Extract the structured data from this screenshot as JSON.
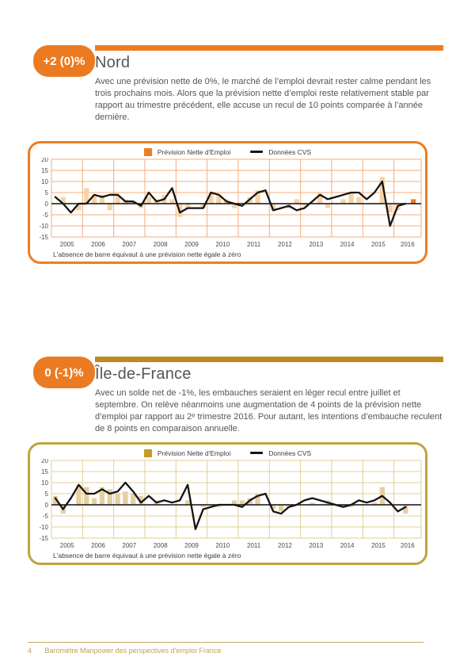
{
  "sections": [
    {
      "badge": "+2 (0)%",
      "badge_color": "#EB7B23",
      "accent_color": "#EE7D22",
      "title": "Nord",
      "body": "Avec une prévision nette de 0%, le marché de l’emploi devrait rester calme pendant les trois prochains mois. Alors que la prévision nette d’emploi reste relativement stable par rapport au trimestre précédent, elle accuse un recul de 10 points comparée à l’année dernière."
    },
    {
      "badge": "0 (-1)%",
      "badge_color": "#EB7B23",
      "accent_color": "#BE8C1E",
      "title": "Île-de-France",
      "body": "Avec un solde net de -1%, les embauches seraient en léger recul entre juillet et septembre. On relève néanmoins une augmentation de 4 points de la prévision nette d’emploi par rapport au 2ᵉ trimestre 2016. Pour autant, les intentions d’embauche reculent de 8 points en comparaison annuelle."
    }
  ],
  "chart_data": [
    {
      "type": "bar",
      "region": "Nord",
      "legend": [
        "Prévision Nette d'Emploi",
        "Données CVS"
      ],
      "note": "L'absence de barre équivaut à une prévision nette égale à zéro",
      "x_years": [
        "2005",
        "2006",
        "2007",
        "2008",
        "2009",
        "2010",
        "2011",
        "2012",
        "2013",
        "2014",
        "2015",
        "2016"
      ],
      "x_unit": "quarter",
      "ylim": [
        -15,
        20
      ],
      "yticks": [
        20,
        15,
        10,
        5,
        0,
        -5,
        -10,
        -15
      ],
      "highlight_last_bar": true,
      "series": [
        {
          "name": "Prévision Nette d'Emploi",
          "type": "bar",
          "values": [
            0,
            3,
            0,
            -3,
            7,
            4,
            4,
            -3,
            4,
            2,
            1,
            -2,
            3,
            2,
            4,
            2,
            -6,
            -2,
            0,
            -2,
            5,
            4,
            2,
            -2,
            0,
            3,
            6,
            0,
            -3,
            0,
            -2,
            2,
            -1,
            0,
            5,
            -2,
            0,
            2,
            5,
            3,
            0,
            0,
            12,
            -4,
            -3,
            0,
            2
          ]
        },
        {
          "name": "Données CVS",
          "type": "line",
          "values": [
            3,
            0,
            -4,
            0,
            0,
            4,
            3,
            4,
            4,
            1,
            1,
            -1,
            5,
            1,
            2,
            7,
            -4,
            -2,
            -2,
            -2,
            5,
            4,
            1,
            0,
            -1,
            2,
            5,
            6,
            -3,
            -2,
            -1,
            -3,
            -2,
            1,
            4,
            2,
            3,
            4,
            5,
            5,
            2,
            5,
            10,
            -10,
            -1,
            0,
            null
          ]
        }
      ],
      "theme": {
        "border": "#EE7D22",
        "grid": "#F4AC7C",
        "bar": "#F6D3A6",
        "accent": "#EE7D22",
        "line": "#141414"
      }
    },
    {
      "type": "bar",
      "region": "Île-de-France",
      "legend": [
        "Prévision Nette d'Emploi",
        "Données CVS"
      ],
      "note": "L'absence de barre équivaut à une prévision nette égale à zéro",
      "x_years": [
        "2005",
        "2006",
        "2007",
        "2008",
        "2009",
        "2010",
        "2011",
        "2012",
        "2013",
        "2014",
        "2015",
        "2016"
      ],
      "x_unit": "quarter",
      "ylim": [
        -15,
        20
      ],
      "yticks": [
        20,
        15,
        10,
        5,
        0,
        -5,
        -10,
        -15
      ],
      "highlight_last_bar": false,
      "series": [
        {
          "name": "Prévision Nette d'Emploi",
          "type": "bar",
          "values": [
            4,
            -4,
            0,
            9,
            8,
            3,
            8,
            7,
            5,
            6,
            5,
            4,
            0,
            2,
            0,
            0,
            0,
            2,
            0,
            -1,
            -1,
            -1,
            0,
            2,
            2,
            3,
            5,
            0,
            -2,
            -3,
            -1,
            0,
            0,
            1,
            0,
            2,
            0,
            -1,
            -1,
            0,
            0,
            1,
            8,
            0,
            0,
            -4,
            0
          ]
        },
        {
          "name": "Données CVS",
          "type": "line",
          "values": [
            3,
            -2,
            3,
            9,
            5,
            5,
            7,
            5,
            6,
            10,
            6,
            1,
            4,
            1,
            2,
            1,
            2,
            9,
            -11,
            -2,
            -1,
            0,
            0,
            0,
            -1,
            2,
            4,
            5,
            -3,
            -4,
            -1,
            0,
            2,
            3,
            2,
            1,
            0,
            -1,
            0,
            2,
            1,
            2,
            4,
            1,
            -3,
            -1,
            null
          ]
        }
      ],
      "theme": {
        "border": "#C2A33B",
        "grid": "#DFD096",
        "bar": "#E6CFA0",
        "accent": "#C49A2A",
        "line": "#141414"
      }
    }
  ],
  "footer": {
    "page_number": "4",
    "title": "Baromètre Manpower des perspectives d'emploi France",
    "rule_color": "#C9A85F"
  }
}
